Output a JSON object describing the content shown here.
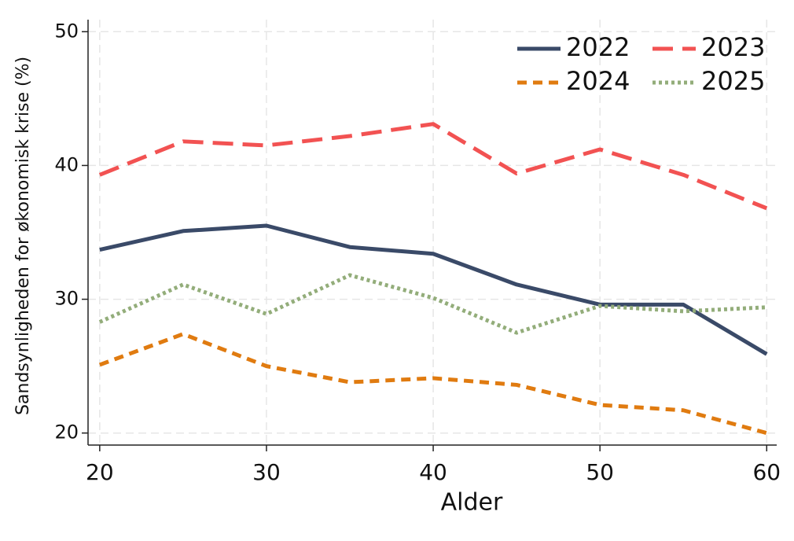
{
  "chart_data": {
    "type": "line",
    "x_label": "Alder",
    "y_label": "Sandsynligheden for økonomisk krise (%)",
    "x": [
      20,
      25,
      30,
      35,
      40,
      45,
      50,
      55,
      60
    ],
    "series": [
      {
        "name": "2022",
        "color": "#3a4a68",
        "dash": "solid",
        "values": [
          33.7,
          35.1,
          35.5,
          33.9,
          33.4,
          31.1,
          29.6,
          29.6,
          25.9
        ]
      },
      {
        "name": "2023",
        "color": "#f25252",
        "dash": "dashed",
        "values": [
          39.3,
          41.8,
          41.5,
          42.2,
          43.1,
          39.4,
          41.2,
          39.3,
          36.8
        ]
      },
      {
        "name": "2024",
        "color": "#e07b10",
        "dash": "short-dash",
        "values": [
          25.1,
          27.4,
          25.0,
          23.8,
          24.1,
          23.6,
          22.1,
          21.7,
          20.0
        ]
      },
      {
        "name": "2025",
        "color": "#93ad7a",
        "dash": "dotted",
        "values": [
          28.3,
          31.1,
          28.9,
          31.8,
          30.1,
          27.5,
          29.5,
          29.1,
          29.4
        ]
      }
    ],
    "xlim": [
      19.3,
      60.6
    ],
    "xticks": [
      20,
      30,
      40,
      50,
      60
    ],
    "ylim": [
      19.1,
      50.9
    ],
    "yticks": [
      20,
      30,
      40,
      50
    ],
    "grid": true,
    "legend": "upper-right"
  }
}
